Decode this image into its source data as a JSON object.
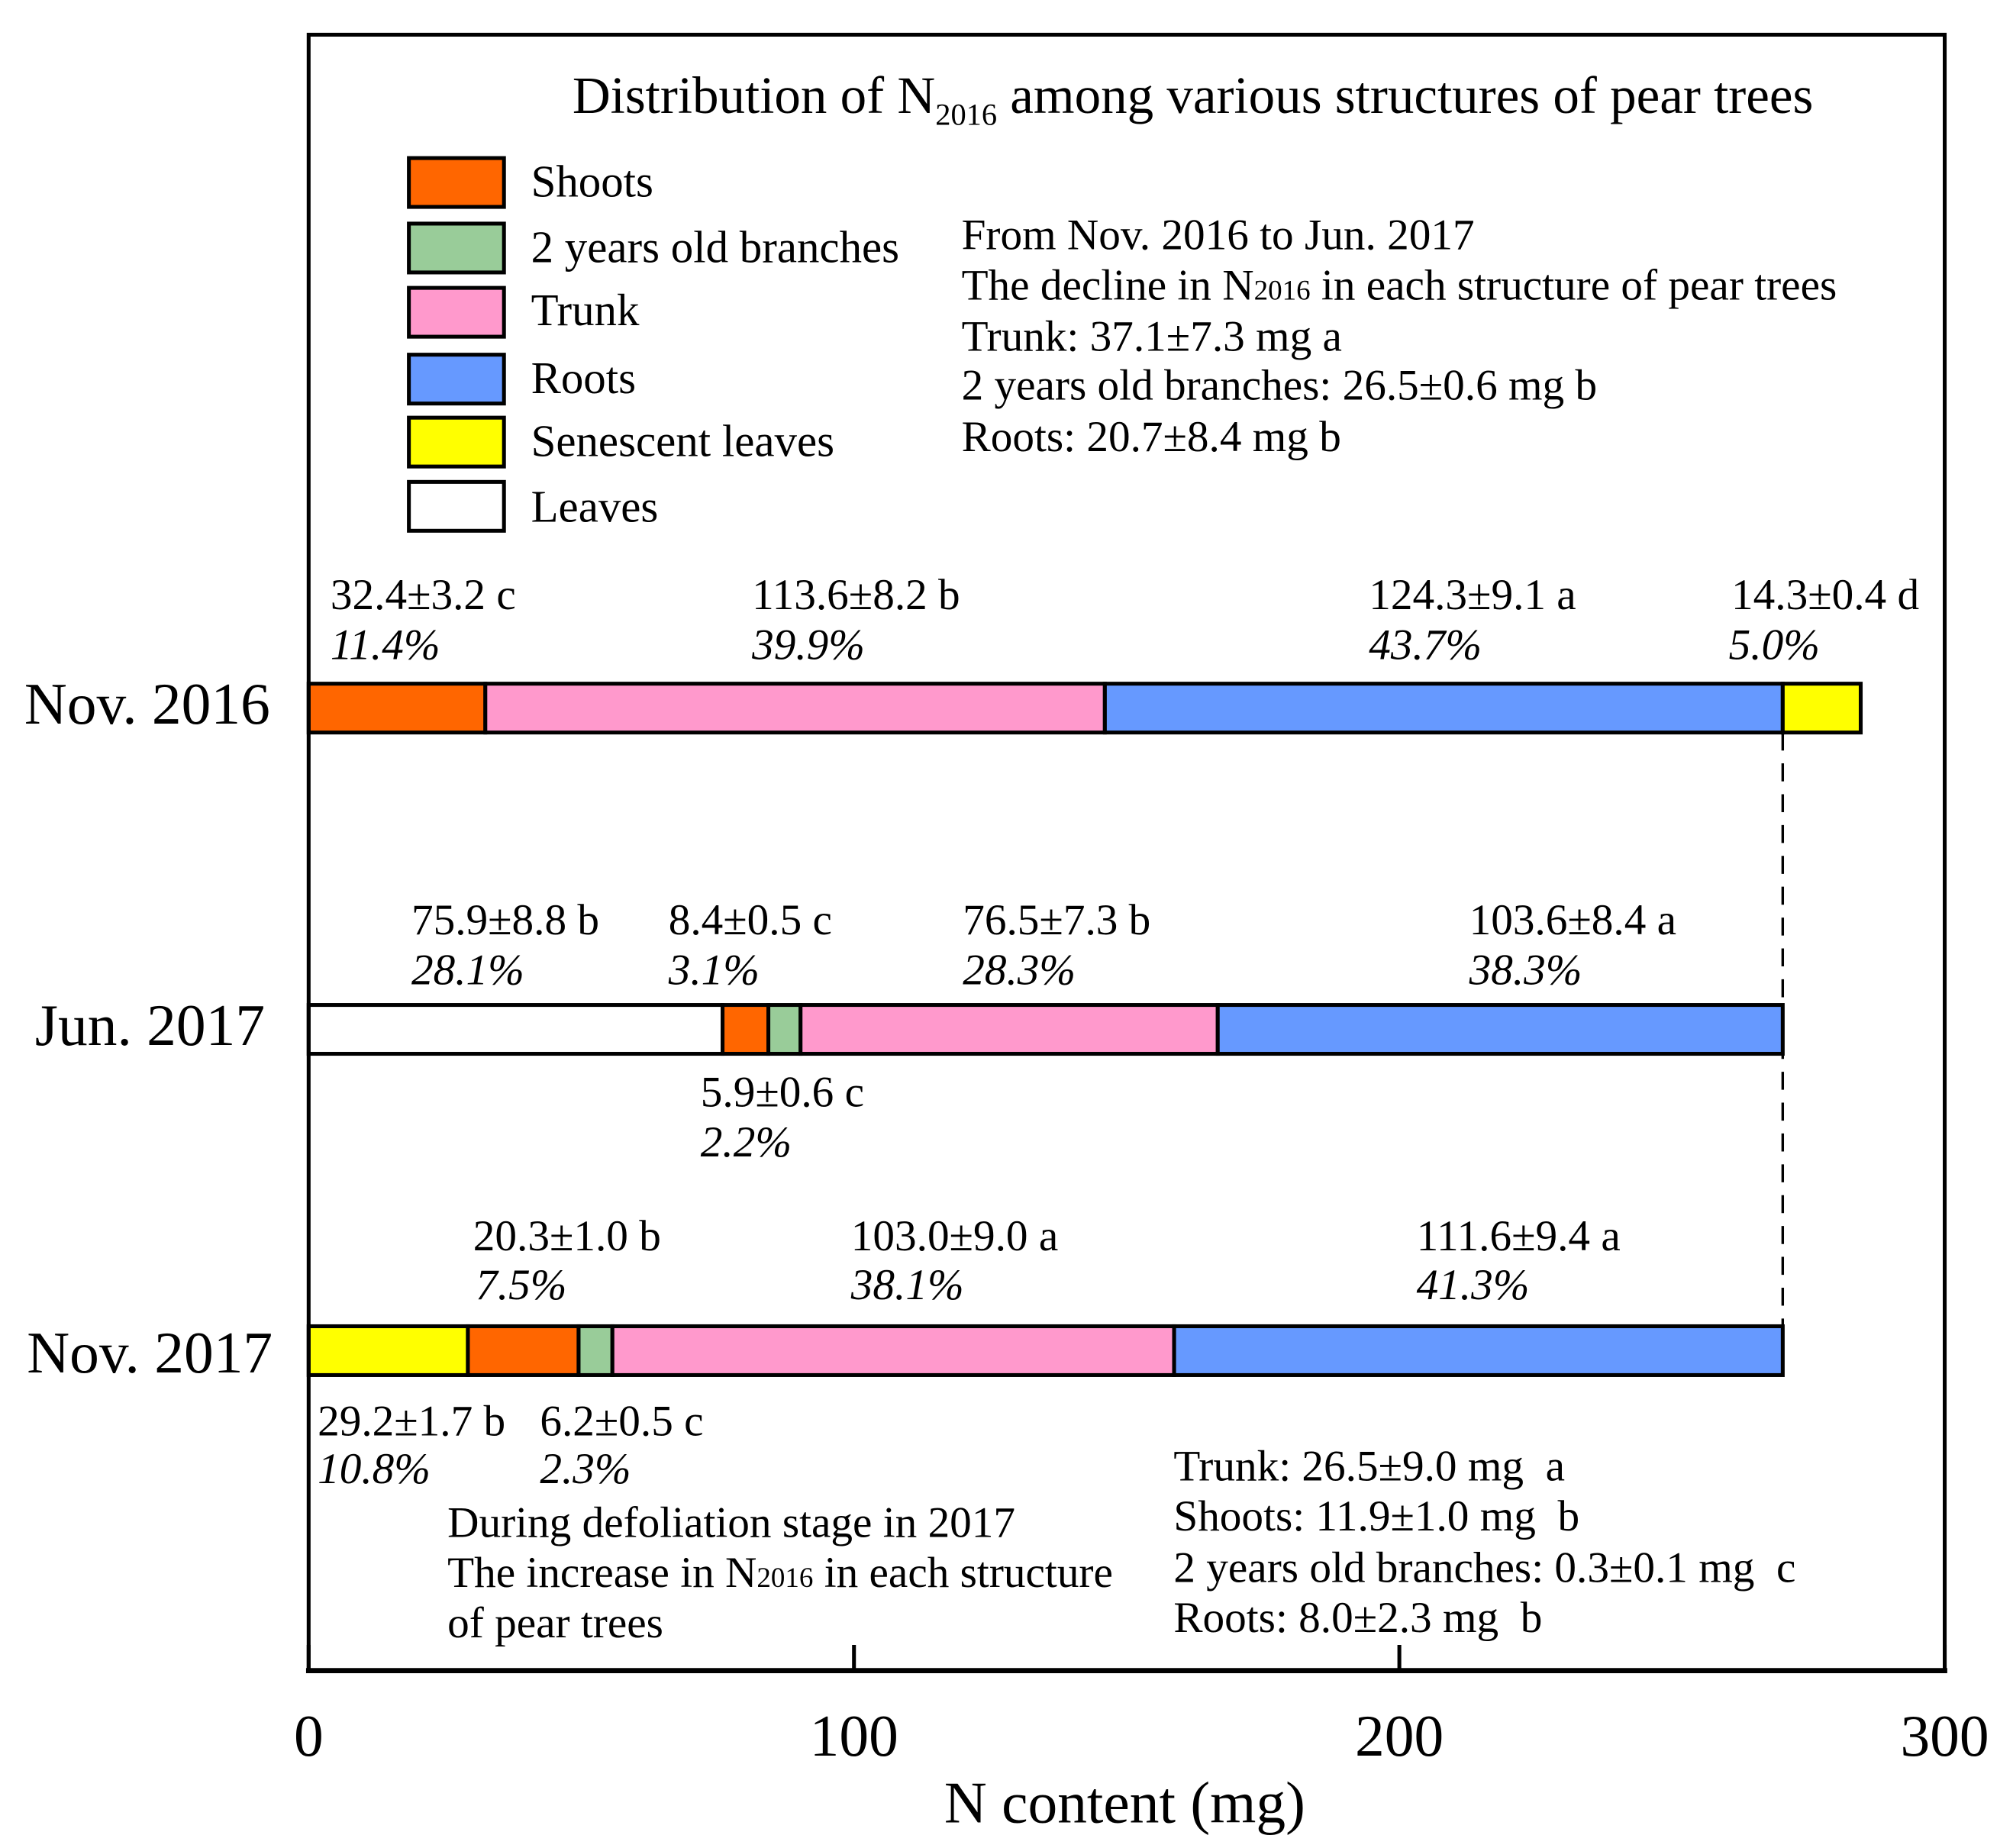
{
  "chart_data": {
    "type": "bar",
    "stacked": true,
    "title": {
      "main": "Distribution of N",
      "subscript": "2016",
      "rest": " among various structures of pear trees"
    },
    "xlabel": "N content (mg)",
    "xlim": [
      0,
      300
    ],
    "xticks": [
      0,
      100,
      200,
      300
    ],
    "xtick_labels": [
      "0",
      "100",
      "200",
      "300"
    ],
    "legend": [
      {
        "name": "Shoots",
        "color": "#FF6600"
      },
      {
        "name": "2 years old branches",
        "color": "#99CC99"
      },
      {
        "name": "Trunk",
        "color": "#FF99CC"
      },
      {
        "name": "Roots",
        "color": "#6699FF"
      },
      {
        "name": "Senescent leaves",
        "color": "#FFFF00"
      },
      {
        "name": "Leaves",
        "color": "#FFFFFF"
      }
    ],
    "bars": [
      {
        "category": "Nov. 2016",
        "segments": [
          {
            "series": "Shoots",
            "value": 32.4,
            "label": "32.4±3.2 c",
            "percent": "11.4%"
          },
          {
            "series": "Trunk",
            "value": 113.6,
            "label": "113.6±8.2 b",
            "percent": "39.9%"
          },
          {
            "series": "Roots",
            "value": 124.3,
            "label": "124.3±9.1 a",
            "percent": "43.7%"
          },
          {
            "series": "Senescent leaves",
            "value": 14.3,
            "label": "14.3±0.4 d",
            "percent": "5.0%"
          }
        ]
      },
      {
        "category": "Jun. 2017",
        "segments": [
          {
            "series": "Leaves",
            "value": 75.9,
            "label": "75.9±8.8 b",
            "percent": "28.1%"
          },
          {
            "series": "Shoots",
            "value": 8.4,
            "label": "8.4±0.5 c",
            "percent": "3.1%"
          },
          {
            "series": "2 years old branches",
            "value": 5.9,
            "label": "5.9±0.6 c",
            "percent": "2.2%"
          },
          {
            "series": "Trunk",
            "value": 76.5,
            "label": "76.5±7.3 b",
            "percent": "28.3%"
          },
          {
            "series": "Roots",
            "value": 103.6,
            "label": "103.6±8.4 a",
            "percent": "38.3%"
          }
        ]
      },
      {
        "category": "Nov. 2017",
        "segments": [
          {
            "series": "Senescent leaves",
            "value": 29.2,
            "label": "29.2±1.7 b",
            "percent": "10.8%"
          },
          {
            "series": "Shoots",
            "value": 20.3,
            "label": "20.3±1.0 b",
            "percent": "7.5%"
          },
          {
            "series": "2 years old branches",
            "value": 6.2,
            "label": "6.2±0.5 c",
            "percent": "2.3%"
          },
          {
            "series": "Trunk",
            "value": 103.0,
            "label": "103.0±9.0 a",
            "percent": "38.1%"
          },
          {
            "series": "Roots",
            "value": 111.6,
            "label": "111.6±9.4 a",
            "percent": "41.3%"
          }
        ]
      }
    ]
  },
  "annotations": {
    "decline": {
      "heading": "From Nov. 2016 to Jun. 2017",
      "subtitle": {
        "before": "The decline in N",
        "subscript": "2016",
        "after": " in each structure of pear trees"
      },
      "items": [
        "Trunk: 37.1±7.3 mg a",
        "2 years old branches: 26.5±0.6 mg b",
        "Roots: 20.7±8.4 mg b"
      ]
    },
    "increase": {
      "heading": "During defoliation stage in 2017",
      "subtitle": {
        "before": "The increase in N",
        "subscript": "2016",
        "after": " in each structure"
      },
      "subtitle_cont": "of pear trees",
      "items": [
        "Trunk: 26.5±9.0 mg  a",
        "Shoots: 11.9±1.0 mg  b",
        "2 years old branches: 0.3±0.1 mg  c",
        "Roots: 8.0±2.3 mg  b"
      ]
    }
  }
}
